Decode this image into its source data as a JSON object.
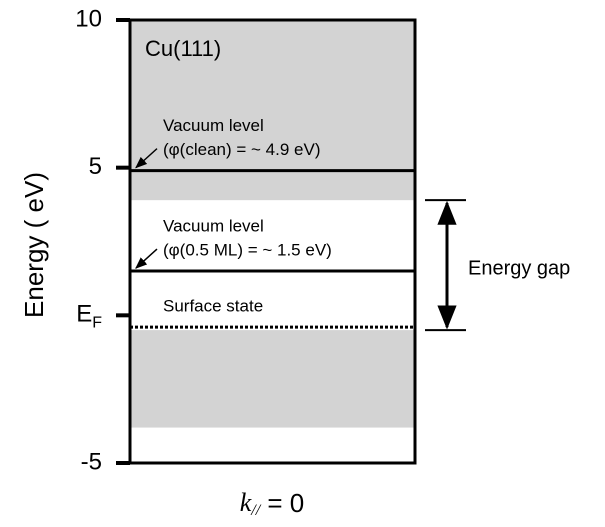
{
  "chart_data": {
    "type": "band-diagram",
    "title": "Cu(111)",
    "ylabel": "Energy ( eV)",
    "xlabel": "k// = 0",
    "ylim": [
      -5,
      10
    ],
    "yticks": [
      -5,
      {
        "value": 0,
        "label": "EF"
      },
      5,
      10
    ],
    "bands": [
      {
        "from": 10,
        "to": 3.9,
        "color": "#d3d3d3"
      },
      {
        "from": -0.5,
        "to": -3.8,
        "color": "#d3d3d3"
      }
    ],
    "levels": [
      {
        "value": 4.9,
        "labels": [
          "Vacuum level",
          "(φ(clean) = ~ 4.9 eV)"
        ],
        "style": "solid",
        "arrow": true
      },
      {
        "value": 1.5,
        "labels": [
          "Vacuum level",
          "(φ(0.5 ML) = ~ 1.5 eV)"
        ],
        "style": "solid",
        "arrow": true
      },
      {
        "value": -0.4,
        "labels": [
          "Surface state"
        ],
        "style": "dotted",
        "arrow": false
      }
    ],
    "gap": {
      "from": 3.9,
      "to": -0.5,
      "label": "Energy gap"
    }
  }
}
